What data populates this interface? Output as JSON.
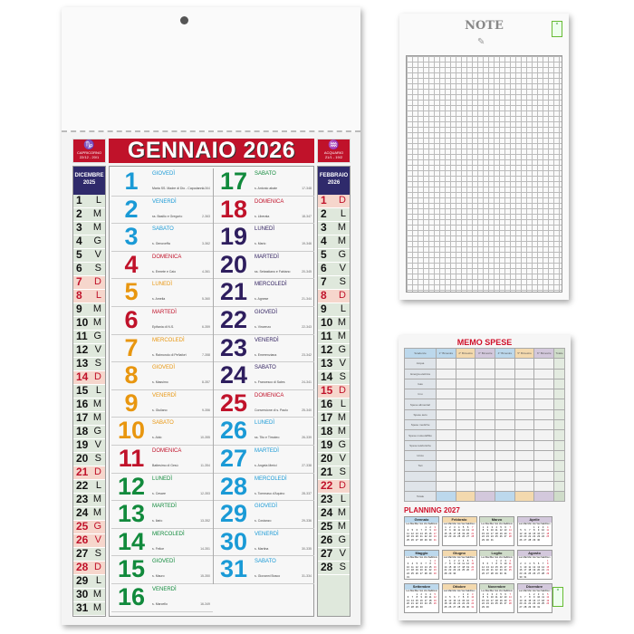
{
  "main": {
    "title": "GENNAIO 2026",
    "zodiac_left": {
      "name": "CAPRICORNO",
      "dates": "22/12 - 20/1",
      "icon": "goat-icon"
    },
    "zodiac_right": {
      "name": "ACQUARIO",
      "dates": "21/1 - 19/2",
      "icon": "water-bearer-icon"
    },
    "prev": {
      "month": "DICEMBRE",
      "year": "2025",
      "letters": [
        "L",
        "M",
        "M",
        "G",
        "V",
        "S",
        "D"
      ],
      "start": 0,
      "days": 31,
      "red": [
        7,
        8,
        14,
        21,
        25,
        26,
        28
      ]
    },
    "next": {
      "month": "FEBBRAIO",
      "year": "2026",
      "letters": [
        "L",
        "M",
        "M",
        "G",
        "V",
        "S",
        "D"
      ],
      "start": 6,
      "days": 28,
      "red": [
        1,
        8,
        15,
        22
      ]
    },
    "colors": {
      "blue": "#1a9ad6",
      "orange": "#e8960f",
      "red": "#c0122a",
      "green": "#118a3c",
      "purple": "#2e1e5e"
    },
    "days": [
      [
        "1",
        "GIOVEDÌ",
        "Maria SS. Madre di Dio - Capodanno",
        "1-364",
        "blue"
      ],
      [
        "2",
        "VENERDÌ",
        "ss. Basilio e Gregorio",
        "2-363",
        "blue"
      ],
      [
        "3",
        "SABATO",
        "s. Genoveffa",
        "3-362",
        "blue"
      ],
      [
        "4",
        "DOMENICA",
        "s. Ermete e Caio",
        "4-361",
        "red"
      ],
      [
        "5",
        "LUNEDÌ",
        "s. Amelia",
        "5-360",
        "orange"
      ],
      [
        "6",
        "MARTEDÌ",
        "Epifania di N.S.",
        "6-359",
        "red"
      ],
      [
        "7",
        "MERCOLEDÌ",
        "s. Raimondo di Peñafort",
        "7-358",
        "orange"
      ],
      [
        "8",
        "GIOVEDÌ",
        "s. Massimo",
        "8-357",
        "orange"
      ],
      [
        "9",
        "VENERDÌ",
        "s. Giuliano",
        "9-356",
        "orange"
      ],
      [
        "10",
        "SABATO",
        "s. Aldo",
        "10-355",
        "orange"
      ],
      [
        "11",
        "DOMENICA",
        "Battesimo di Gesù",
        "11-354",
        "red"
      ],
      [
        "12",
        "LUNEDÌ",
        "s. Cesare",
        "12-353",
        "green"
      ],
      [
        "13",
        "MARTEDÌ",
        "s. Ilario",
        "13-352",
        "green"
      ],
      [
        "14",
        "MERCOLEDÌ",
        "s. Felice",
        "14-351",
        "green"
      ],
      [
        "15",
        "GIOVEDÌ",
        "s. Mauro",
        "15-350",
        "green"
      ],
      [
        "16",
        "VENERDÌ",
        "s. Marcello",
        "16-349",
        "green"
      ],
      [
        "17",
        "SABATO",
        "s. Antonio abate",
        "17-348",
        "green"
      ],
      [
        "18",
        "DOMENICA",
        "s. Liberata",
        "18-347",
        "red"
      ],
      [
        "19",
        "LUNEDÌ",
        "s. Mario",
        "19-346",
        "purple"
      ],
      [
        "20",
        "MARTEDÌ",
        "ss. Sebastiano e Fabiano",
        "20-345",
        "purple"
      ],
      [
        "21",
        "MERCOLEDÌ",
        "s. Agnese",
        "21-344",
        "purple"
      ],
      [
        "22",
        "GIOVEDÌ",
        "s. Vincenzo",
        "22-343",
        "purple"
      ],
      [
        "23",
        "VENERDÌ",
        "s. Emerenziana",
        "23-342",
        "purple"
      ],
      [
        "24",
        "SABATO",
        "s. Francesco di Sales",
        "24-341",
        "purple"
      ],
      [
        "25",
        "DOMENICA",
        "Conversione di s. Paolo",
        "25-340",
        "red"
      ],
      [
        "26",
        "LUNEDÌ",
        "ss. Tito e Timoteo",
        "26-339",
        "blue"
      ],
      [
        "27",
        "MARTEDÌ",
        "s. Angela Merici",
        "27-338",
        "blue"
      ],
      [
        "28",
        "MERCOLEDÌ",
        "s. Tommaso d'Aquino",
        "28-337",
        "blue"
      ],
      [
        "29",
        "GIOVEDÌ",
        "s. Costanzo",
        "29-336",
        "blue"
      ],
      [
        "30",
        "VENERDÌ",
        "s. Martina",
        "30-335",
        "blue"
      ],
      [
        "31",
        "SABATO",
        "s. Giovanni Bosco",
        "31-334",
        "blue"
      ]
    ]
  },
  "note": {
    "title": "NOTE"
  },
  "memo": {
    "title": "MEMO SPESE",
    "headers": [
      "Scadenze",
      "1° Bimestre",
      "2° Bimestre",
      "3° Bimestre",
      "4° Bimestre",
      "5° Bimestre",
      "6° Bimestre",
      "Totale"
    ],
    "header_colors": [
      "#bcd8ec",
      "#bcd8ec",
      "#f3d9ae",
      "#d3c8dc",
      "#bcd8ec",
      "#f3d9ae",
      "#d3c8dc",
      "#cfdcc9"
    ],
    "rows": [
      "Acqua",
      "Energia elettrica",
      "Gas",
      "Imu",
      "Spese alimentari",
      "Spese auto",
      "Spese mediche",
      "Spese mutuo/affitto",
      "Spese telefoniche",
      "Unico",
      "Tari",
      "",
      ""
    ],
    "total": "Totale"
  },
  "planning": {
    "title": "PLANNING 2027",
    "weekdays": [
      "Lun",
      "Mar",
      "Mer",
      "Gio",
      "Ven",
      "Sab",
      "Dom"
    ],
    "months": [
      {
        "name": "Gennaio",
        "color": "#bcd8ec",
        "start": 4,
        "days": 31
      },
      {
        "name": "Febbraio",
        "color": "#f3d9ae",
        "start": 0,
        "days": 28
      },
      {
        "name": "Marzo",
        "color": "#cfdcc9",
        "start": 0,
        "days": 31
      },
      {
        "name": "Aprile",
        "color": "#d3c8dc",
        "start": 3,
        "days": 30
      },
      {
        "name": "Maggio",
        "color": "#bcd8ec",
        "start": 5,
        "days": 31
      },
      {
        "name": "Giugno",
        "color": "#f3d9ae",
        "start": 1,
        "days": 30
      },
      {
        "name": "Luglio",
        "color": "#cfdcc9",
        "start": 3,
        "days": 31
      },
      {
        "name": "Agosto",
        "color": "#d3c8dc",
        "start": 6,
        "days": 31
      },
      {
        "name": "Settembre",
        "color": "#bcd8ec",
        "start": 2,
        "days": 30
      },
      {
        "name": "Ottobre",
        "color": "#f3d9ae",
        "start": 4,
        "days": 31
      },
      {
        "name": "Novembre",
        "color": "#cfdcc9",
        "start": 0,
        "days": 30
      },
      {
        "name": "Dicembre",
        "color": "#d3c8dc",
        "start": 2,
        "days": 31
      }
    ]
  }
}
